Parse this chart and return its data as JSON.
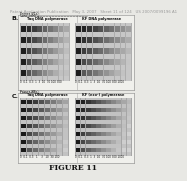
{
  "header_text": "Patent Application Publication   May 3, 2007   Sheet 11 of 124   US 2007/0099196 A1",
  "figure_label": "FIGURE 11",
  "panel_B_label": "B.",
  "panel_C_label": "C.",
  "bg_color": "#e8e8e4",
  "panel_bg": "#ffffff",
  "text_color": "#111111",
  "header_color": "#999999",
  "header_fontsize": 2.8,
  "label_fontsize": 4.5,
  "small_fontsize": 2.2,
  "fig_label_fontsize": 5.5
}
